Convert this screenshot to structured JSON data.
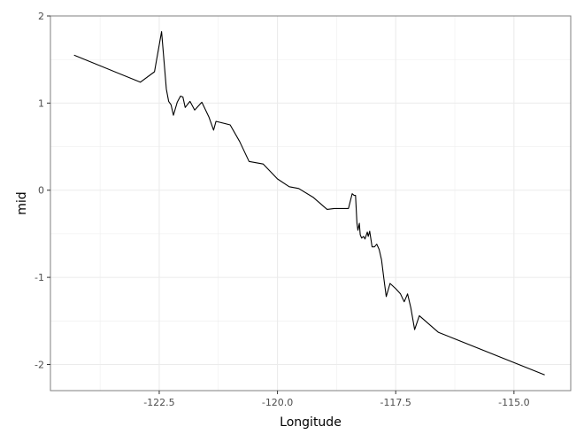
{
  "chart_data": {
    "type": "line",
    "title": "",
    "xlabel": "Longitude",
    "ylabel": "mid",
    "xlim": [
      -124.8,
      -113.8
    ],
    "ylim": [
      -2.3,
      2.0
    ],
    "x_ticks": [
      -122.5,
      -120.0,
      -117.5,
      -115.0
    ],
    "x_tick_labels": [
      "-122.5",
      "-120.0",
      "-117.5",
      "-115.0"
    ],
    "y_ticks": [
      2,
      1,
      0,
      -1,
      -2
    ],
    "y_tick_labels": [
      "2",
      "1",
      "0",
      "-1",
      "-2"
    ],
    "grid": true,
    "legend": "none",
    "colors": {
      "line": "#000000",
      "grid": "#ebebeb",
      "panel_border": "#7f7f7f"
    },
    "series": [
      {
        "x": [
          -124.3,
          -122.9,
          -122.6,
          -122.45,
          -122.35,
          -122.3,
          -122.25,
          -122.2,
          -122.12,
          -122.05,
          -122.0,
          -121.95,
          -121.85,
          -121.75,
          -121.6,
          -121.45,
          -121.35,
          -121.3,
          -121.0,
          -120.8,
          -120.6,
          -120.3,
          -120.0,
          -119.75,
          -119.55,
          -119.25,
          -118.95,
          -118.8,
          -118.5,
          -118.42,
          -118.38,
          -118.35,
          -118.32,
          -118.3,
          -118.27,
          -118.25,
          -118.22,
          -118.18,
          -118.15,
          -118.1,
          -118.08,
          -118.05,
          -118.0,
          -117.95,
          -117.9,
          -117.85,
          -117.8,
          -117.75,
          -117.7,
          -117.62,
          -117.5,
          -117.4,
          -117.32,
          -117.25,
          -117.18,
          -117.1,
          -117.0,
          -116.6,
          -114.35
        ],
        "y": [
          1.55,
          1.24,
          1.36,
          1.82,
          1.16,
          1.02,
          0.98,
          0.86,
          1.01,
          1.08,
          1.07,
          0.95,
          1.02,
          0.92,
          1.01,
          0.84,
          0.69,
          0.79,
          0.75,
          0.56,
          0.33,
          0.3,
          0.13,
          0.04,
          0.02,
          -0.08,
          -0.22,
          -0.21,
          -0.21,
          -0.04,
          -0.06,
          -0.06,
          -0.38,
          -0.46,
          -0.38,
          -0.51,
          -0.55,
          -0.53,
          -0.56,
          -0.48,
          -0.53,
          -0.47,
          -0.65,
          -0.65,
          -0.62,
          -0.68,
          -0.8,
          -1.02,
          -1.22,
          -1.07,
          -1.13,
          -1.19,
          -1.28,
          -1.19,
          -1.35,
          -1.6,
          -1.44,
          -1.63,
          -2.12
        ]
      }
    ]
  }
}
